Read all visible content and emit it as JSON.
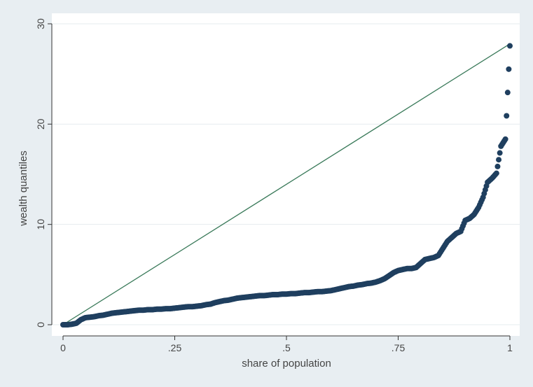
{
  "chart_data": {
    "type": "scatter",
    "xlabel": "share of population",
    "ylabel": "wealth quantiles",
    "xlim": [
      0,
      1
    ],
    "ylim": [
      0,
      30
    ],
    "x_ticks": [
      {
        "value": 0,
        "label": "0"
      },
      {
        "value": 0.25,
        "label": ".25"
      },
      {
        "value": 0.5,
        "label": ".5"
      },
      {
        "value": 0.75,
        "label": ".75"
      },
      {
        "value": 1,
        "label": "1"
      }
    ],
    "y_ticks": [
      {
        "value": 0,
        "label": "0"
      },
      {
        "value": 10,
        "label": "10"
      },
      {
        "value": 20,
        "label": "20"
      },
      {
        "value": 30,
        "label": "30"
      }
    ],
    "grid": "horizontal",
    "reference_line": {
      "x": [
        0,
        1
      ],
      "y": [
        0,
        28
      ],
      "color": "#3a7a5a"
    },
    "series": [
      {
        "color": "#1f3f5f",
        "points": [
          [
            0.0,
            0.0
          ],
          [
            0.01,
            0.0
          ],
          [
            0.02,
            0.05
          ],
          [
            0.03,
            0.15
          ],
          [
            0.04,
            0.5
          ],
          [
            0.05,
            0.7
          ],
          [
            0.06,
            0.75
          ],
          [
            0.07,
            0.8
          ],
          [
            0.08,
            0.9
          ],
          [
            0.09,
            0.95
          ],
          [
            0.1,
            1.05
          ],
          [
            0.11,
            1.15
          ],
          [
            0.12,
            1.2
          ],
          [
            0.13,
            1.25
          ],
          [
            0.14,
            1.3
          ],
          [
            0.15,
            1.35
          ],
          [
            0.16,
            1.4
          ],
          [
            0.17,
            1.45
          ],
          [
            0.18,
            1.45
          ],
          [
            0.19,
            1.5
          ],
          [
            0.2,
            1.5
          ],
          [
            0.21,
            1.55
          ],
          [
            0.22,
            1.55
          ],
          [
            0.23,
            1.6
          ],
          [
            0.24,
            1.6
          ],
          [
            0.25,
            1.65
          ],
          [
            0.26,
            1.7
          ],
          [
            0.27,
            1.75
          ],
          [
            0.28,
            1.8
          ],
          [
            0.29,
            1.8
          ],
          [
            0.3,
            1.85
          ],
          [
            0.31,
            1.9
          ],
          [
            0.32,
            2.0
          ],
          [
            0.33,
            2.05
          ],
          [
            0.34,
            2.2
          ],
          [
            0.35,
            2.3
          ],
          [
            0.36,
            2.4
          ],
          [
            0.37,
            2.45
          ],
          [
            0.38,
            2.55
          ],
          [
            0.39,
            2.65
          ],
          [
            0.4,
            2.7
          ],
          [
            0.41,
            2.75
          ],
          [
            0.42,
            2.8
          ],
          [
            0.43,
            2.85
          ],
          [
            0.44,
            2.9
          ],
          [
            0.45,
            2.9
          ],
          [
            0.46,
            2.95
          ],
          [
            0.47,
            3.0
          ],
          [
            0.48,
            3.0
          ],
          [
            0.49,
            3.05
          ],
          [
            0.5,
            3.05
          ],
          [
            0.51,
            3.1
          ],
          [
            0.52,
            3.1
          ],
          [
            0.53,
            3.15
          ],
          [
            0.54,
            3.2
          ],
          [
            0.55,
            3.2
          ],
          [
            0.56,
            3.25
          ],
          [
            0.57,
            3.3
          ],
          [
            0.58,
            3.3
          ],
          [
            0.59,
            3.35
          ],
          [
            0.6,
            3.4
          ],
          [
            0.61,
            3.5
          ],
          [
            0.62,
            3.6
          ],
          [
            0.63,
            3.7
          ],
          [
            0.64,
            3.8
          ],
          [
            0.65,
            3.85
          ],
          [
            0.66,
            3.95
          ],
          [
            0.67,
            4.0
          ],
          [
            0.68,
            4.1
          ],
          [
            0.69,
            4.15
          ],
          [
            0.7,
            4.25
          ],
          [
            0.71,
            4.4
          ],
          [
            0.72,
            4.6
          ],
          [
            0.73,
            4.9
          ],
          [
            0.74,
            5.2
          ],
          [
            0.75,
            5.4
          ],
          [
            0.76,
            5.5
          ],
          [
            0.77,
            5.6
          ],
          [
            0.78,
            5.6
          ],
          [
            0.79,
            5.7
          ],
          [
            0.8,
            6.1
          ],
          [
            0.81,
            6.5
          ],
          [
            0.82,
            6.6
          ],
          [
            0.83,
            6.7
          ],
          [
            0.84,
            6.9
          ],
          [
            0.85,
            7.6
          ],
          [
            0.86,
            8.3
          ],
          [
            0.87,
            8.7
          ],
          [
            0.88,
            9.1
          ],
          [
            0.89,
            9.3
          ],
          [
            0.9,
            10.4
          ],
          [
            0.91,
            10.6
          ],
          [
            0.92,
            11.0
          ],
          [
            0.93,
            11.7
          ],
          [
            0.94,
            12.7
          ],
          [
            0.95,
            14.2
          ],
          [
            0.96,
            14.6
          ],
          [
            0.97,
            15.1
          ],
          [
            0.98,
            17.8
          ],
          [
            0.99,
            18.5
          ],
          [
            1.0,
            27.8
          ]
        ]
      }
    ]
  }
}
